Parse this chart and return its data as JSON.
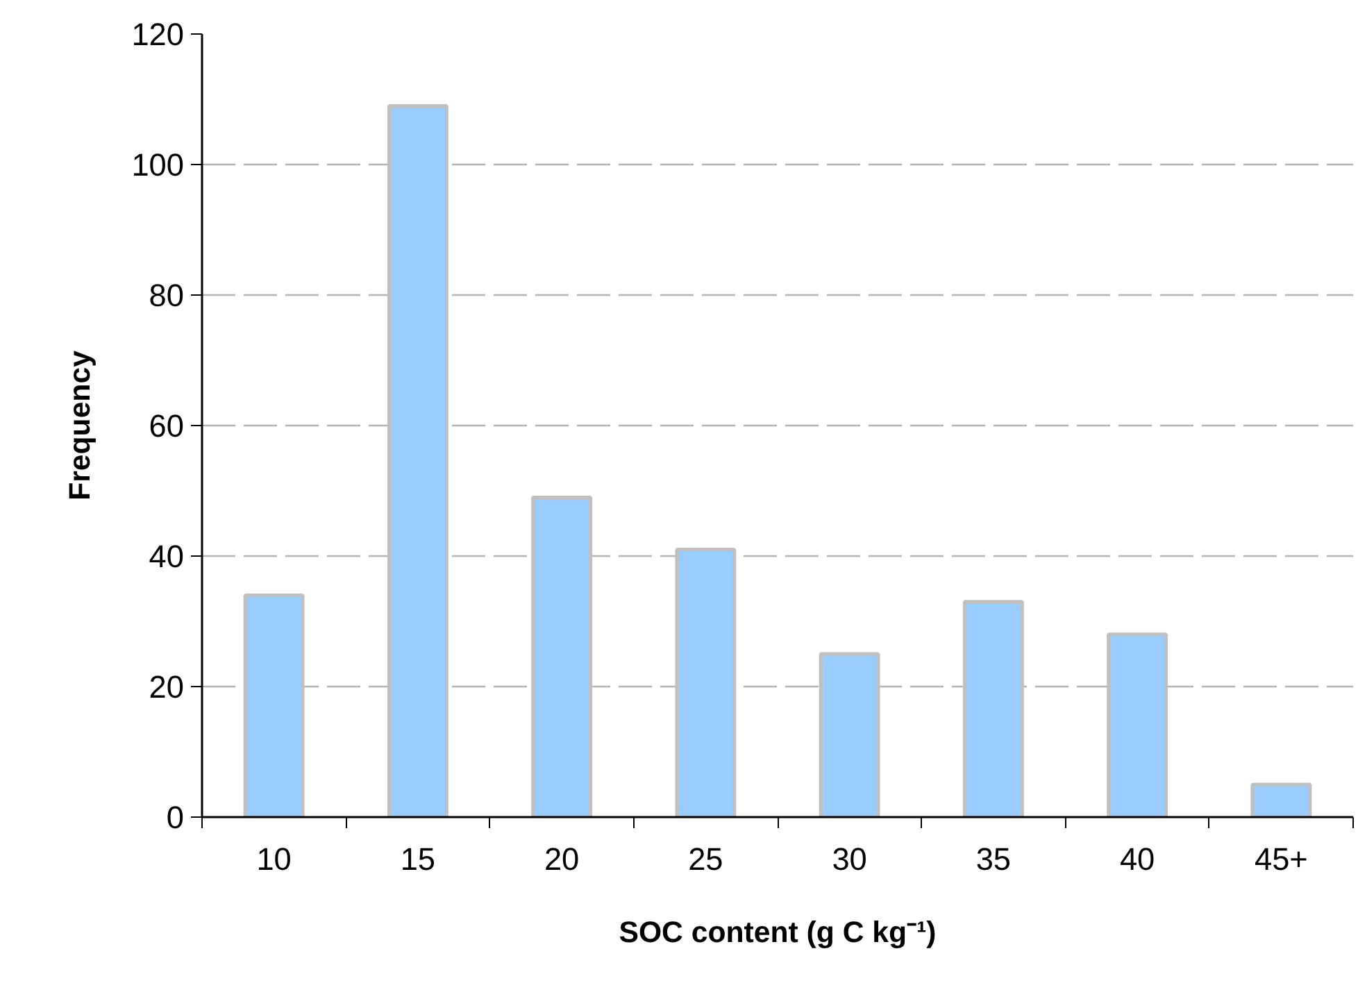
{
  "chart_data": {
    "type": "bar",
    "xlabel": "SOC content (g C kg⁻¹)",
    "ylabel": "Frequency",
    "categories": [
      "10",
      "15",
      "20",
      "25",
      "30",
      "35",
      "40",
      "45+"
    ],
    "values": [
      34,
      109,
      49,
      41,
      25,
      33,
      28,
      5
    ],
    "color": "#99ccff",
    "ylim": [
      0,
      120
    ],
    "yticks": [
      0,
      20,
      40,
      60,
      80,
      100,
      120
    ],
    "grid": "y"
  }
}
